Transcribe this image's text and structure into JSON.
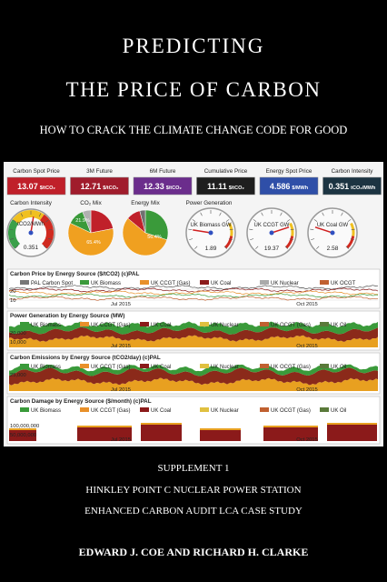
{
  "header": {
    "title_line1": "PREDICTING",
    "title_line2": "THE PRICE OF CARBON",
    "subtitle": "HOW TO CRACK THE CLIMATE CHANGE CODE FOR GOOD"
  },
  "dashboard": {
    "tiles": [
      {
        "label": "Carbon Spot Price",
        "value": "13.07",
        "unit": "$/tCO₂"
      },
      {
        "label": "3M Future",
        "value": "12.71",
        "unit": "$/tCO₂"
      },
      {
        "label": "6M Future",
        "value": "12.33",
        "unit": "$/tCO₂"
      },
      {
        "label": "Cumulative Price",
        "value": "11.11",
        "unit": "$/tCO₂"
      },
      {
        "label": "Energy Spot Price",
        "value": "4.586",
        "unit": "$/MWh"
      },
      {
        "label": "Carbon Intensity",
        "value": "0.351",
        "unit": "tCO₂/MWh"
      }
    ],
    "intensity_gauge": {
      "label": "Carbon Intensity",
      "caption": "tCO2/MWh",
      "value": "0.351"
    },
    "pies": [
      {
        "label": "CO₂ Mix",
        "slices": [
          "21.9%",
          "65.4%"
        ]
      },
      {
        "label": "Energy Mix",
        "slices": [
          "56.4%"
        ]
      }
    ],
    "generation_label": "Power Generation",
    "gauges": [
      {
        "caption": "UK Biomass GW",
        "value": "1.89"
      },
      {
        "caption": "UK CCGT GW",
        "value": "19.37"
      },
      {
        "caption": "UK Coal GW",
        "value": "2.58"
      }
    ],
    "charts": [
      {
        "title": "Carbon Price by Energy Source ($/tCO2) (c)PAL",
        "legend": [
          "PAL Carbon Spot",
          "UK Biomass",
          "UK CCGT (Gas)",
          "UK Coal",
          "UK Nuclear",
          "UK OCGT"
        ],
        "yticks": [
          "20",
          "10"
        ],
        "xticks": [
          "Jul 2015",
          "Oct 2015"
        ]
      },
      {
        "title": "Power Generation by Energy Source (MW)",
        "legend": [
          "UK Biomass",
          "UK CCGT (Gas)",
          "UK Coal",
          "UK Nuclear",
          "UK OCGT (Gas)",
          "UK Oil"
        ],
        "yticks": [
          "20,000",
          "10,000"
        ],
        "xticks": [
          "Jul 2015",
          "Oct 2015"
        ]
      },
      {
        "title": "Carbon Emissions by Energy Source (tCO2/day) (c)PAL",
        "legend": [
          "UK Biomass",
          "UK CCGT (Gas)",
          "UK Coal",
          "UK Nuclear",
          "UK OCGT (Gas)",
          "UK Oil"
        ],
        "yticks": [
          "25,000"
        ],
        "xticks": [
          "Jul 2015",
          "Oct 2015"
        ]
      },
      {
        "title": "Carbon Damage by Energy Source ($/month) (c)PAL",
        "legend": [
          "UK Biomass",
          "UK CCGT (Gas)",
          "UK Coal",
          "UK Nuclear",
          "UK OCGT (Gas)",
          "UK Oil"
        ],
        "yticks": [
          "100,000,000",
          "50,000,000"
        ],
        "xticks": [
          "Jul 2015",
          "Oct 2015"
        ]
      }
    ]
  },
  "footer": {
    "supplement": "SUPPLEMENT 1",
    "line1": "HINKLEY POINT C NUCLEAR POWER STATION",
    "line2": "ENHANCED CARBON AUDIT LCA CASE STUDY",
    "authors": "EDWARD J. COE AND RICHARD H. CLARKE"
  }
}
